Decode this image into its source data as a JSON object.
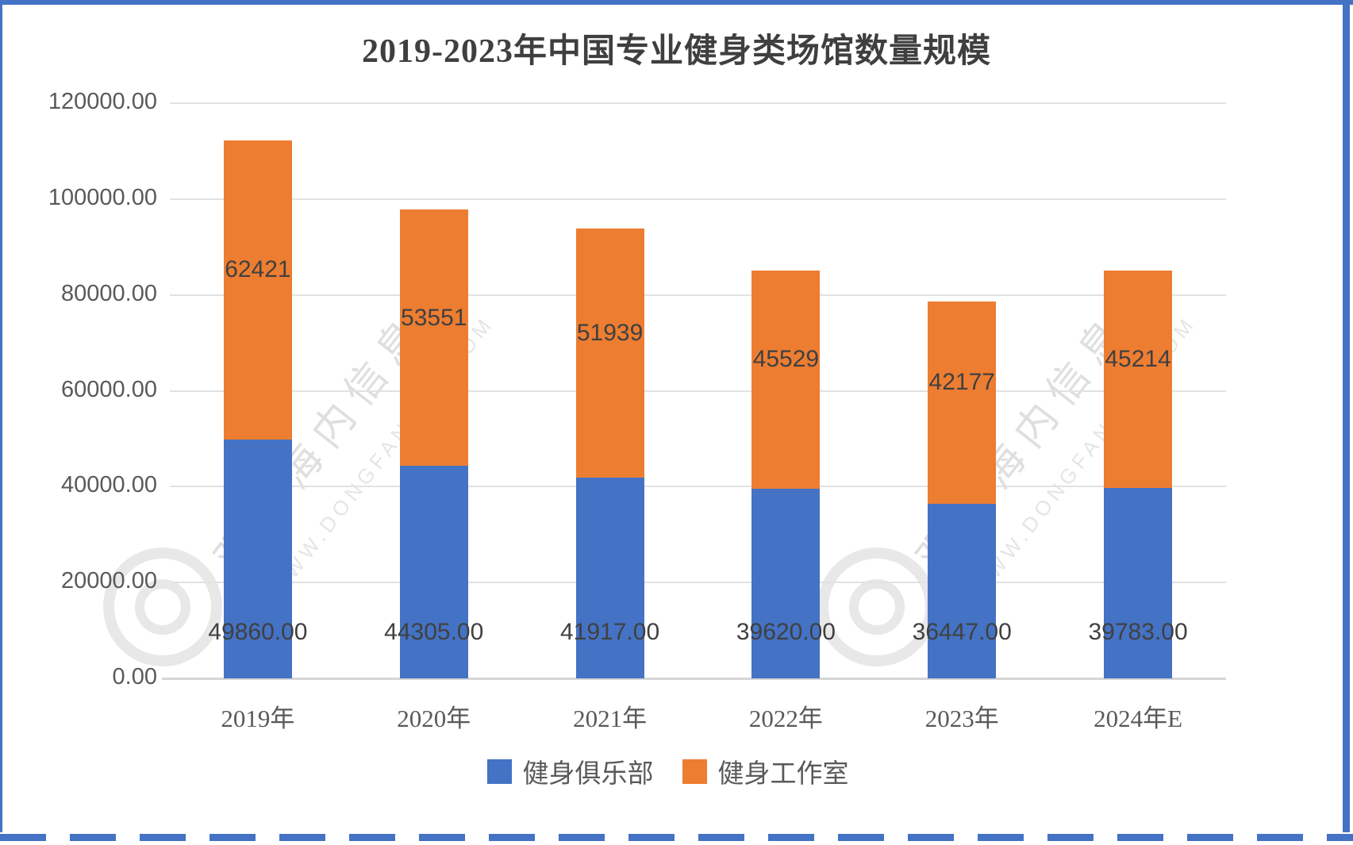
{
  "frame": {
    "border_color": "#4472c4"
  },
  "chart_data": {
    "type": "bar",
    "stacked": true,
    "title": "2019-2023年中国专业健身类场馆数量规模",
    "categories": [
      "2019年",
      "2020年",
      "2021年",
      "2022年",
      "2023年",
      "2024年E"
    ],
    "series": [
      {
        "name": "健身俱乐部",
        "color": "#4472c4",
        "values": [
          49860,
          44305,
          41917,
          39620,
          36447,
          39783
        ],
        "labels": [
          "49860.00",
          "44305.00",
          "41917.00",
          "39620.00",
          "36447.00",
          "39783.00"
        ]
      },
      {
        "name": "健身工作室",
        "color": "#ed7d31",
        "values": [
          62421,
          53551,
          51939,
          45529,
          42177,
          45214
        ],
        "labels": [
          "62421",
          "53551",
          "51939",
          "45529",
          "42177",
          "45214"
        ]
      }
    ],
    "ylim": [
      0,
      120000
    ],
    "ytick_step": 20000,
    "ytick_labels": [
      "0.00",
      "20000.00",
      "40000.00",
      "60000.00",
      "80000.00",
      "100000.00",
      "120000.00"
    ],
    "grid": true,
    "legend_position": "bottom"
  },
  "watermark": {
    "text": "观知海内信息网",
    "subtext": "WWW.DONGFANGQB.COM"
  }
}
